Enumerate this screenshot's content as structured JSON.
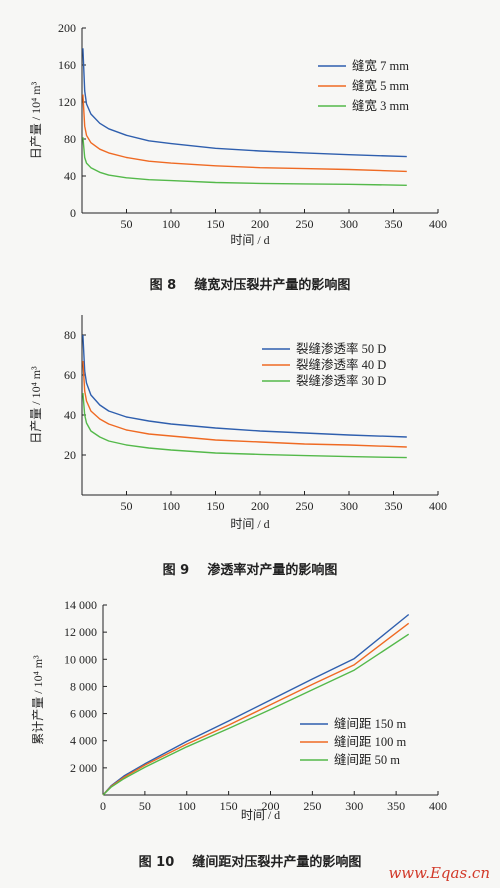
{
  "chart_data": [
    {
      "type": "line",
      "caption": "图 8    缝宽对压裂井产量的影响图",
      "xlabel": "时间 / d",
      "ylabel": "日产量 / 10⁴ m³",
      "xlim": [
        0,
        400
      ],
      "ylim": [
        0,
        200
      ],
      "xticks": [
        0,
        50,
        100,
        150,
        200,
        250,
        300,
        350,
        400
      ],
      "xtick_labels": [
        "",
        "50",
        "100",
        "150",
        "200",
        "250",
        "300",
        "350",
        "400"
      ],
      "yticks": [
        0,
        40,
        80,
        120,
        160,
        200
      ],
      "ytick_labels": [
        "0",
        "40",
        "80",
        "120",
        "160",
        "200"
      ],
      "legend_position": "top-right",
      "grid": false,
      "x": [
        1,
        3,
        5,
        10,
        20,
        30,
        50,
        75,
        100,
        150,
        200,
        250,
        300,
        365
      ],
      "series": [
        {
          "name": "缝宽 7 mm",
          "color": "#2f5fae",
          "values": [
            178,
            132,
            118,
            107,
            97,
            91,
            84,
            78,
            75,
            70,
            67,
            65,
            63,
            61
          ]
        },
        {
          "name": "缝宽 5 mm",
          "color": "#ef6a23",
          "values": [
            128,
            94,
            84,
            76,
            69,
            65,
            60,
            56,
            54,
            51,
            49,
            48,
            47,
            45
          ]
        },
        {
          "name": "缝宽 3 mm",
          "color": "#54b94a",
          "values": [
            82,
            60,
            54,
            49,
            44,
            41,
            38,
            36,
            35,
            33,
            32,
            31.5,
            31,
            30
          ]
        }
      ]
    },
    {
      "type": "line",
      "caption": "图 9    渗透率对产量的影响图",
      "xlabel": "时间 / d",
      "ylabel": "日产量 / 10⁴ m³",
      "xlim": [
        0,
        400
      ],
      "ylim": [
        0,
        90
      ],
      "xticks": [
        50,
        100,
        150,
        200,
        250,
        300,
        350,
        400
      ],
      "xtick_labels": [
        "50",
        "100",
        "150",
        "200",
        "250",
        "300",
        "350",
        "400"
      ],
      "yticks": [
        20,
        40,
        60,
        80
      ],
      "ytick_labels": [
        "20",
        "40",
        "60",
        "80"
      ],
      "legend_position": "top-right",
      "grid": false,
      "x": [
        1,
        3,
        5,
        10,
        20,
        30,
        50,
        75,
        100,
        150,
        200,
        250,
        300,
        365
      ],
      "series": [
        {
          "name": "裂缝渗透率 50 D",
          "color": "#2f5fae",
          "values": [
            80,
            62,
            56,
            50,
            45,
            42,
            39,
            37,
            35.5,
            33.5,
            32,
            31,
            30,
            29
          ]
        },
        {
          "name": "裂缝渗透率 40 D",
          "color": "#ef6a23",
          "values": [
            67,
            52,
            47,
            42,
            38,
            35.5,
            32.5,
            30.5,
            29.5,
            27.5,
            26.5,
            25.5,
            25,
            24
          ]
        },
        {
          "name": "裂缝渗透率 30 D",
          "color": "#54b94a",
          "values": [
            51,
            40,
            36,
            32,
            29,
            27,
            25,
            23.5,
            22.5,
            21,
            20.3,
            19.7,
            19.2,
            18.7
          ]
        }
      ]
    },
    {
      "type": "line",
      "caption": "图 10    缝间距对压裂井产量的影响图",
      "xlabel": "时间 / d",
      "ylabel": "累计产量 / 10⁴ m³",
      "xlim": [
        0,
        400
      ],
      "ylim": [
        0,
        14000
      ],
      "xticks": [
        0,
        50,
        100,
        150,
        200,
        250,
        300,
        350,
        400
      ],
      "xtick_labels": [
        "0",
        "50",
        "100",
        "150",
        "200",
        "250",
        "300",
        "350",
        "400"
      ],
      "yticks": [
        2000,
        4000,
        6000,
        8000,
        10000,
        12000,
        14000
      ],
      "ytick_labels": [
        "2 000",
        "4 000",
        "6 000",
        "8 000",
        "10 000",
        "12 000",
        "14 000"
      ],
      "legend_position": "bottom-right",
      "grid": false,
      "x": [
        0,
        10,
        25,
        50,
        100,
        150,
        200,
        250,
        300,
        365
      ],
      "series": [
        {
          "name": "缝间距 150 m",
          "color": "#2f5fae",
          "values": [
            0,
            700,
            1400,
            2300,
            3950,
            5450,
            7000,
            8550,
            10050,
            13300
          ]
        },
        {
          "name": "缝间距 100 m",
          "color": "#ef6a23",
          "values": [
            0,
            650,
            1300,
            2200,
            3750,
            5150,
            6650,
            8150,
            9600,
            12650
          ]
        },
        {
          "name": "缝间距 50 m",
          "color": "#54b94a",
          "values": [
            0,
            600,
            1200,
            2050,
            3550,
            4900,
            6300,
            7750,
            9200,
            11850
          ]
        }
      ]
    }
  ],
  "watermark": "www.Eqas.cn"
}
